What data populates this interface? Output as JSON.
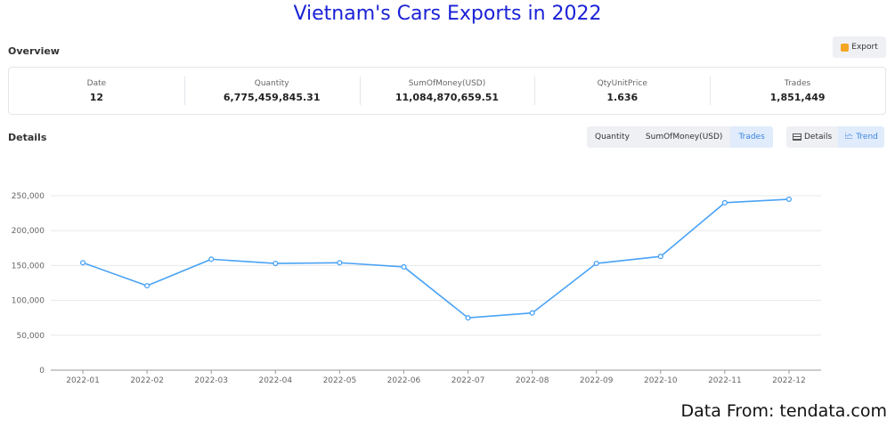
{
  "title": "Vietnam's Cars Exports in 2022",
  "overview": {
    "label": "Overview",
    "export_label": "Export",
    "summary": [
      {
        "label": "Date",
        "value": "12"
      },
      {
        "label": "Quantity",
        "value": "6,775,459,845.31"
      },
      {
        "label": "SumOfMoney(USD)",
        "value": "11,084,870,659.51"
      },
      {
        "label": "QtyUnitPrice",
        "value": "1.636"
      },
      {
        "label": "Trades",
        "value": "1,851,449"
      }
    ]
  },
  "details": {
    "label": "Details",
    "metric_tabs": [
      {
        "label": "Quantity",
        "active": false
      },
      {
        "label": "SumOfMoney(USD)",
        "active": false
      },
      {
        "label": "Trades",
        "active": true
      }
    ],
    "view_tabs": [
      {
        "label": "Details",
        "icon": "table-icon",
        "active": false
      },
      {
        "label": "Trend",
        "icon": "trend-line-icon",
        "active": true
      }
    ]
  },
  "chart_data": {
    "type": "line",
    "title": "",
    "xlabel": "",
    "ylabel": "",
    "categories": [
      "2022-01",
      "2022-02",
      "2022-03",
      "2022-04",
      "2022-05",
      "2022-06",
      "2022-07",
      "2022-08",
      "2022-09",
      "2022-10",
      "2022-11",
      "2022-12"
    ],
    "series": [
      {
        "values": [
          154000,
          121000,
          159000,
          153000,
          154000,
          148000,
          75000,
          82000,
          153000,
          163000,
          240000,
          245000
        ]
      }
    ],
    "ylim": [
      0,
      250000
    ],
    "yticks": [
      0,
      50000,
      100000,
      150000,
      200000,
      250000
    ],
    "ytick_labels": [
      "0",
      "50,000",
      "100,000",
      "150,000",
      "200,000",
      "250,000"
    ],
    "grid": true,
    "line_color": "#4aa3f5"
  },
  "source_note": "Data From: tendata.com"
}
